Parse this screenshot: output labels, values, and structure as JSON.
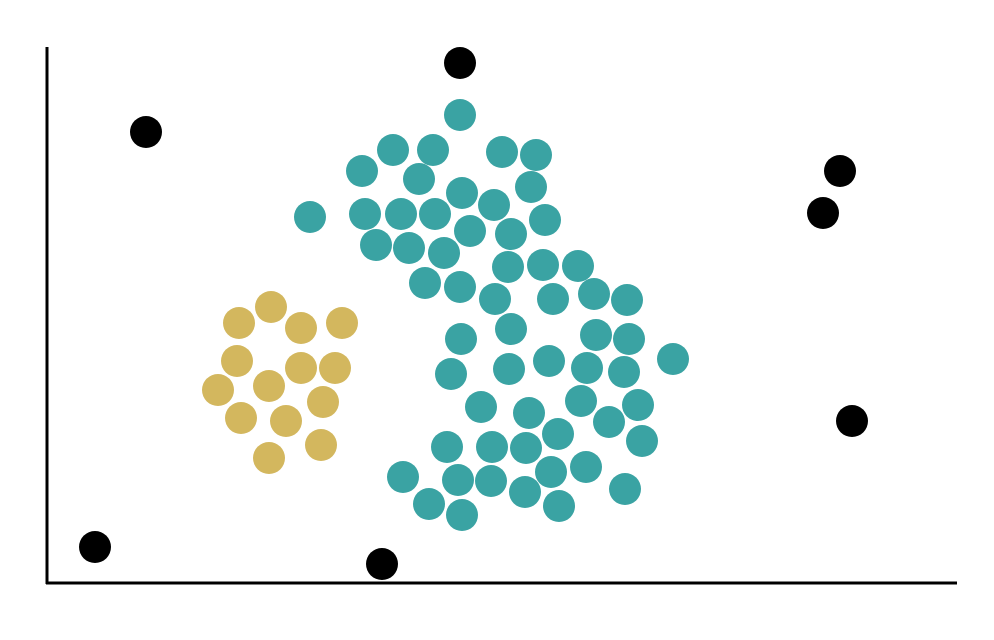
{
  "chart_data": {
    "type": "scatter",
    "xlim": [
      0,
      910
    ],
    "ylim": [
      0,
      536
    ],
    "series": [
      {
        "color": "#3aa3a3",
        "x": [
          413,
          346,
          386,
          455,
          489,
          315,
          372,
          415,
          484,
          263,
          318,
          354,
          388,
          447,
          498,
          423,
          464,
          329,
          362,
          397,
          461,
          496,
          531,
          378,
          413,
          448,
          506,
          547,
          580,
          464,
          414,
          549,
          582,
          626,
          502,
          462,
          404,
          540,
          577,
          434,
          482,
          534,
          591,
          562,
          400,
          445,
          479,
          511,
          595,
          356,
          411,
          444,
          504,
          539,
          382,
          415,
          478,
          512,
          578
        ],
        "y": [
          468,
          433,
          433,
          431,
          428,
          412,
          404,
          390,
          396,
          366,
          369,
          369,
          369,
          378,
          363,
          352,
          349,
          338,
          335,
          330,
          316,
          318,
          317,
          300,
          296,
          284,
          284,
          289,
          283,
          254,
          244,
          248,
          244,
          224,
          222,
          214,
          209,
          215,
          211,
          176,
          170,
          182,
          178,
          161,
          136,
          136,
          135,
          149,
          142,
          106,
          103,
          102,
          111,
          116,
          79,
          68,
          91,
          77,
          94
        ]
      },
      {
        "color": "#d3b75e",
        "x": [
          224,
          192,
          254,
          295,
          190,
          254,
          288,
          171,
          222,
          276,
          194,
          239,
          222,
          274
        ],
        "y": [
          276,
          260,
          255,
          260,
          222,
          215,
          215,
          193,
          197,
          181,
          165,
          162,
          125,
          138
        ]
      },
      {
        "color": "#000000",
        "x": [
          413,
          99,
          793,
          776,
          805,
          48,
          335
        ],
        "y": [
          520,
          451,
          412,
          370,
          162,
          36,
          19
        ]
      }
    ]
  }
}
